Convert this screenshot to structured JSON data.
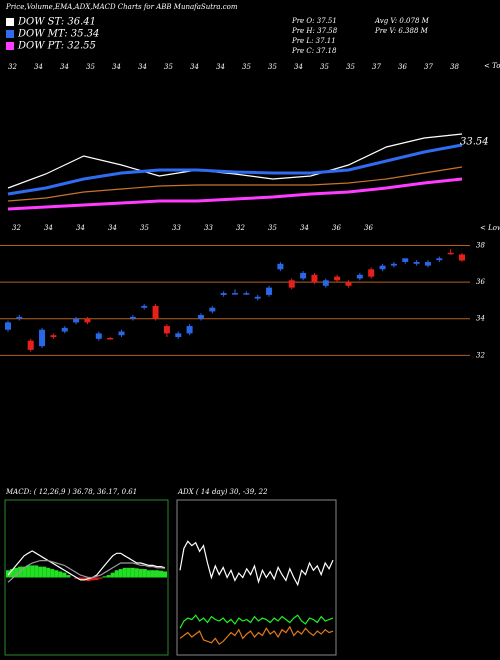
{
  "header": {
    "title": "Price,Volume,EMA,ADX,MACD Charts for ABB MunafaSutra.com"
  },
  "chart_data": [
    {
      "type": "line",
      "series": [
        {
          "name": "DOW ST: 36.41",
          "color": "#ffffff",
          "values": [
            28.7,
            30.1,
            31.9,
            31.0,
            29.9,
            30.5,
            30.1,
            29.6,
            29.9,
            31.0,
            32.8,
            33.7,
            34.1
          ]
        },
        {
          "name": "DOW MT: 35.34",
          "color": "#2f6cf0",
          "values": [
            28.1,
            28.7,
            29.6,
            30.2,
            30.5,
            30.5,
            30.3,
            30.2,
            30.2,
            30.5,
            31.4,
            32.3,
            33.0
          ]
        },
        {
          "color": "#c8742a",
          "values": [
            27.4,
            27.7,
            28.3,
            28.6,
            28.9,
            29.0,
            29.0,
            29.0,
            29.0,
            29.2,
            29.6,
            30.2,
            30.8
          ]
        },
        {
          "name": "DOW PT: 32.55",
          "color": "#ff3cff",
          "values": [
            26.6,
            26.8,
            27.0,
            27.2,
            27.4,
            27.4,
            27.6,
            27.8,
            28.1,
            28.3,
            28.7,
            29.2,
            29.6
          ]
        }
      ],
      "ylim": [
        26,
        40
      ],
      "annotation": "33.54",
      "stats": [
        "Pre  O: 37.51",
        "Pre  H: 37.58",
        "Pre  L: 37.11",
        "Pre  C: 37.18",
        "Avg V: 0.078  M",
        "Pre  V: 6.388  M"
      ],
      "top_labels": [
        "32",
        "34",
        "34",
        "35",
        "34",
        "34",
        "35",
        "34",
        "34",
        "35",
        "35",
        "34",
        "35",
        "35",
        "37",
        "36",
        "37",
        "38"
      ],
      "top_caption": "< Tops",
      "low_labels": [
        "32",
        "34",
        "34",
        "34",
        "35",
        "33",
        "33",
        "32",
        "35",
        "34",
        "36",
        "36"
      ],
      "low_caption": "< Lows"
    },
    {
      "type": "candlestick",
      "open": [
        33.4,
        34.0,
        32.8,
        32.5,
        33.1,
        33.3,
        33.8,
        34.0,
        32.9,
        32.95,
        33.1,
        34.0,
        34.6,
        34.7,
        33.6,
        33.0,
        33.2,
        34.0,
        34.4,
        35.3,
        35.35,
        35.35,
        35.1,
        35.3,
        36.7,
        36.1,
        36.2,
        36.4,
        35.8,
        36.3,
        36.0,
        36.2,
        36.7,
        36.7,
        36.9,
        37.1,
        37.0,
        36.9,
        37.2,
        37.6,
        37.51
      ],
      "high": [
        33.9,
        34.2,
        32.9,
        33.5,
        33.2,
        33.6,
        34.1,
        34.1,
        33.3,
        33.0,
        33.4,
        34.2,
        34.8,
        34.8,
        33.7,
        33.3,
        33.7,
        34.3,
        34.7,
        35.5,
        35.6,
        35.5,
        35.3,
        35.8,
        37.1,
        36.2,
        36.6,
        36.5,
        36.2,
        36.4,
        36.1,
        36.5,
        36.8,
        37.0,
        37.1,
        37.3,
        37.2,
        37.2,
        37.4,
        37.8,
        37.58
      ],
      "low": [
        33.3,
        33.9,
        32.2,
        32.4,
        32.9,
        33.2,
        33.7,
        33.7,
        32.8,
        32.85,
        33.0,
        33.9,
        34.5,
        33.9,
        33.0,
        32.9,
        33.1,
        33.9,
        34.3,
        35.2,
        35.3,
        35.3,
        35.0,
        35.2,
        36.6,
        35.6,
        36.1,
        35.9,
        35.7,
        36.0,
        35.7,
        36.1,
        36.2,
        36.6,
        36.8,
        37.0,
        36.9,
        36.8,
        37.1,
        37.5,
        37.11
      ],
      "close": [
        33.8,
        34.1,
        32.3,
        33.4,
        33.0,
        33.5,
        34.0,
        33.8,
        33.2,
        32.9,
        33.3,
        34.1,
        34.7,
        34.0,
        33.2,
        33.2,
        33.6,
        34.2,
        34.6,
        35.4,
        35.4,
        35.4,
        35.2,
        35.7,
        37.0,
        35.7,
        36.5,
        36.0,
        36.1,
        36.1,
        35.8,
        36.4,
        36.3,
        36.9,
        37.0,
        37.3,
        37.1,
        37.1,
        37.3,
        37.55,
        37.18
      ],
      "up_color": "#2a66e8",
      "down_color": "#e8201c",
      "grid_color": "#b5611c",
      "ylim": [
        31.2,
        38.3
      ],
      "yticks": [
        32,
        34,
        36,
        38
      ],
      "grid": true
    },
    {
      "type": "macd",
      "title": "MACD:          ( 12,26,9 ) 36.78,  36.17,  0.61",
      "histogram": [
        0.3,
        0.35,
        0.4,
        0.45,
        0.45,
        0.5,
        0.5,
        0.5,
        0.45,
        0.45,
        0.4,
        0.35,
        0.3,
        0.25,
        0.2,
        0.1,
        0.0,
        -0.05,
        -0.1,
        -0.12,
        -0.15,
        -0.12,
        -0.1,
        -0.05,
        0.05,
        0.1,
        0.2,
        0.3,
        0.35,
        0.4,
        0.4,
        0.4,
        0.38,
        0.35,
        0.35,
        0.3,
        0.3,
        0.3,
        0.28,
        0.25
      ],
      "up_color": "#22e022",
      "down_color": "#e02020",
      "series": [
        {
          "color": "#ffffff",
          "values": [
            0.1,
            0.3,
            0.5,
            0.7,
            0.9,
            1.0,
            1.1,
            1.0,
            0.9,
            0.8,
            0.7,
            0.6,
            0.5,
            0.4,
            0.3,
            0.2,
            0.1,
            0.0,
            -0.1,
            -0.1,
            -0.05,
            0.0,
            0.1,
            0.3,
            0.5,
            0.7,
            0.9,
            1.0,
            1.0,
            0.9,
            0.8,
            0.7,
            0.6,
            0.6,
            0.55,
            0.5,
            0.5,
            0.45,
            0.45,
            0.4
          ]
        },
        {
          "color": "#9a9a9a",
          "values": [
            -0.2,
            -0.05,
            0.1,
            0.25,
            0.4,
            0.5,
            0.6,
            0.65,
            0.7,
            0.7,
            0.7,
            0.65,
            0.6,
            0.55,
            0.5,
            0.4,
            0.3,
            0.2,
            0.1,
            0.05,
            0.0,
            0.0,
            0.05,
            0.1,
            0.2,
            0.3,
            0.4,
            0.5,
            0.6,
            0.6,
            0.6,
            0.6,
            0.55,
            0.5,
            0.5,
            0.45,
            0.45,
            0.4,
            0.4,
            0.38
          ]
        }
      ],
      "ylim": [
        -3,
        3
      ]
    },
    {
      "type": "line",
      "title": "ADX                ( 14  day) 30,  -39,  22",
      "series": [
        {
          "color": "#ffffff",
          "values": [
            55,
            70,
            75,
            72,
            74,
            68,
            72,
            60,
            50,
            58,
            52,
            57,
            50,
            55,
            48,
            53,
            50,
            56,
            52,
            58,
            47,
            55,
            50,
            54,
            49,
            57,
            52,
            48,
            56,
            50,
            45,
            55,
            52,
            60,
            55,
            58,
            52,
            60,
            56,
            62
          ]
        },
        {
          "color": "#22f022",
          "values": [
            15,
            20,
            22,
            21,
            24,
            20,
            22,
            19,
            23,
            21,
            20,
            22,
            19,
            21,
            18,
            22,
            20,
            21,
            19,
            23,
            20,
            22,
            21,
            19,
            22,
            20,
            23,
            21,
            19,
            22,
            24,
            20,
            18,
            22,
            21,
            19,
            23,
            20,
            21,
            22
          ]
        },
        {
          "color": "#e07a18",
          "values": [
            8,
            10,
            12,
            9,
            11,
            13,
            7,
            6,
            5,
            8,
            4,
            6,
            9,
            12,
            10,
            14,
            8,
            11,
            13,
            9,
            12,
            10,
            15,
            11,
            13,
            9,
            14,
            12,
            16,
            10,
            13,
            11,
            15,
            12,
            10,
            13,
            11,
            14,
            12,
            13
          ]
        }
      ],
      "ylim": [
        0,
        100
      ]
    }
  ]
}
